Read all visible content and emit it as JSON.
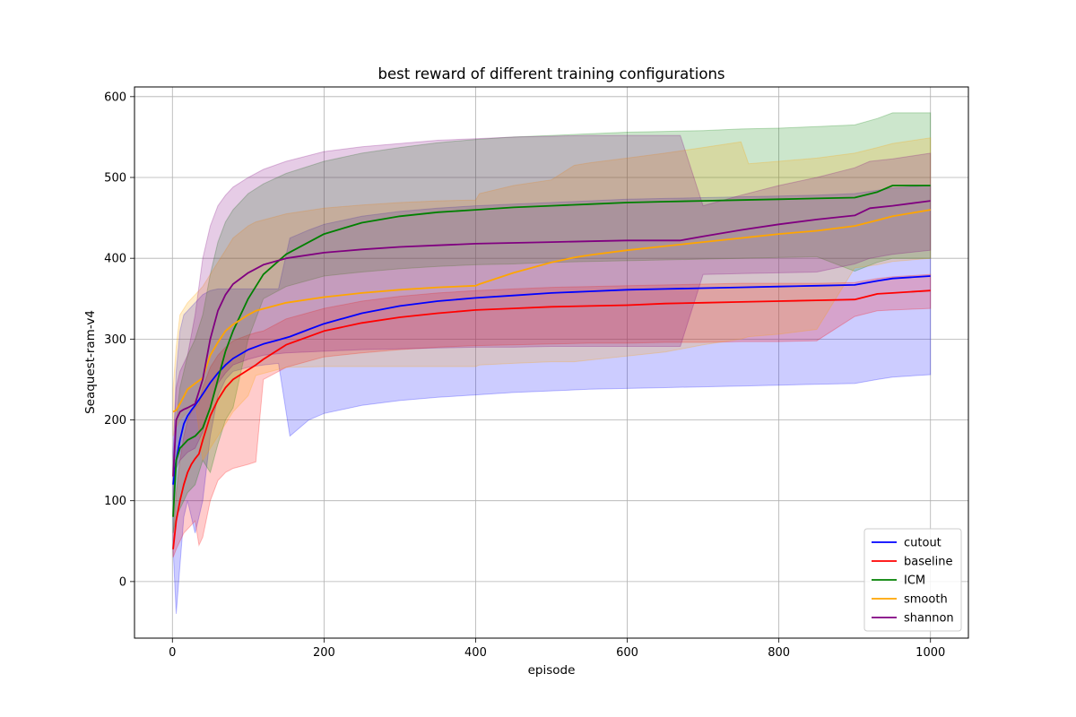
{
  "chart_data": {
    "type": "line",
    "title": "best reward of different training configurations",
    "xlabel": "episode",
    "ylabel": "Seaquest-ram-v4",
    "xlim": [
      -50,
      1050
    ],
    "ylim": [
      -70,
      612
    ],
    "xticks": [
      0,
      200,
      400,
      600,
      800,
      1000
    ],
    "yticks": [
      0,
      100,
      200,
      300,
      400,
      500,
      600
    ],
    "grid": true,
    "legend_position": "lower-right",
    "series": [
      {
        "name": "cutout",
        "color": "#0000ff",
        "x": [
          1,
          5,
          10,
          15,
          20,
          25,
          30,
          35,
          40,
          50,
          60,
          70,
          80,
          100,
          120,
          140,
          155,
          180,
          200,
          250,
          300,
          350,
          400,
          450,
          500,
          550,
          600,
          650,
          700,
          750,
          800,
          850,
          900,
          930,
          950,
          1000
        ],
        "mean": [
          120,
          150,
          175,
          195,
          205,
          212,
          218,
          225,
          232,
          246,
          258,
          268,
          276,
          287,
          294,
          299,
          303,
          312,
          319,
          332,
          341,
          347,
          351,
          354,
          357,
          359,
          361,
          362,
          363,
          364,
          365,
          366,
          367,
          372,
          375,
          378
        ],
        "upper": [
          160,
          260,
          310,
          330,
          335,
          340,
          345,
          350,
          355,
          360,
          362,
          362,
          362,
          362,
          362,
          362,
          425,
          435,
          442,
          452,
          458,
          462,
          465,
          467,
          469,
          471,
          473,
          474,
          475,
          476,
          477,
          478,
          480,
          484,
          487,
          490
        ],
        "lower": [
          40,
          -40,
          20,
          80,
          100,
          80,
          60,
          80,
          100,
          180,
          230,
          250,
          260,
          265,
          268,
          270,
          180,
          200,
          208,
          218,
          224,
          228,
          231,
          234,
          236,
          238,
          239,
          240,
          241,
          242,
          243,
          244,
          245,
          250,
          253,
          256
        ]
      },
      {
        "name": "baseline",
        "color": "#ff0000",
        "x": [
          1,
          5,
          10,
          15,
          20,
          25,
          30,
          35,
          40,
          50,
          60,
          70,
          80,
          100,
          110,
          120,
          150,
          200,
          250,
          300,
          350,
          400,
          450,
          500,
          550,
          600,
          650,
          700,
          750,
          800,
          850,
          900,
          930,
          950,
          1000
        ],
        "mean": [
          40,
          75,
          100,
          120,
          135,
          145,
          152,
          158,
          175,
          205,
          225,
          240,
          250,
          262,
          268,
          275,
          293,
          310,
          320,
          327,
          332,
          336,
          338,
          340,
          341,
          342,
          344,
          345,
          346,
          347,
          348,
          349,
          356,
          357,
          360
        ],
        "upper": [
          60,
          110,
          150,
          180,
          200,
          210,
          215,
          220,
          240,
          265,
          280,
          290,
          298,
          305,
          308,
          310,
          325,
          338,
          347,
          353,
          357,
          360,
          362,
          364,
          365,
          366,
          367,
          368,
          369,
          369,
          369,
          370,
          375,
          377,
          380
        ],
        "lower": [
          30,
          40,
          50,
          60,
          65,
          70,
          75,
          45,
          55,
          100,
          125,
          135,
          140,
          145,
          148,
          250,
          265,
          278,
          283,
          287,
          290,
          292,
          293,
          294,
          295,
          295,
          296,
          296,
          297,
          297,
          298,
          328,
          335,
          336,
          338
        ]
      },
      {
        "name": "ICM",
        "color": "#008000",
        "x": [
          1,
          5,
          10,
          15,
          20,
          30,
          40,
          50,
          60,
          70,
          80,
          100,
          120,
          150,
          200,
          250,
          300,
          350,
          400,
          450,
          500,
          550,
          600,
          650,
          700,
          750,
          800,
          850,
          900,
          930,
          950,
          1000
        ],
        "mean": [
          80,
          150,
          165,
          170,
          175,
          180,
          190,
          215,
          250,
          285,
          310,
          350,
          380,
          405,
          430,
          444,
          452,
          457,
          460,
          463,
          465,
          467,
          469,
          470,
          471,
          472,
          473,
          474,
          475,
          482,
          490,
          490
        ],
        "upper": [
          100,
          200,
          240,
          260,
          280,
          300,
          330,
          380,
          420,
          445,
          460,
          480,
          492,
          505,
          520,
          530,
          537,
          543,
          547,
          550,
          552,
          554,
          556,
          557,
          558,
          560,
          561,
          563,
          565,
          573,
          580,
          580
        ],
        "lower": [
          60,
          80,
          90,
          100,
          110,
          120,
          150,
          135,
          170,
          200,
          215,
          300,
          350,
          365,
          378,
          383,
          387,
          390,
          392,
          393,
          395,
          396,
          397,
          398,
          399,
          400,
          401,
          402,
          384,
          395,
          400,
          400
        ]
      },
      {
        "name": "smooth",
        "color": "#ffa500",
        "x": [
          1,
          5,
          10,
          20,
          30,
          40,
          50,
          60,
          70,
          80,
          100,
          110,
          150,
          200,
          250,
          300,
          350,
          400,
          405,
          450,
          500,
          530,
          550,
          600,
          650,
          700,
          750,
          760,
          800,
          850,
          900,
          930,
          950,
          1000
        ],
        "mean": [
          210,
          212,
          220,
          238,
          245,
          252,
          280,
          296,
          310,
          318,
          330,
          335,
          345,
          352,
          357,
          361,
          364,
          366,
          368,
          382,
          395,
          401,
          404,
          410,
          415,
          420,
          425,
          426,
          430,
          434,
          440,
          447,
          452,
          460
        ],
        "upper": [
          240,
          290,
          330,
          345,
          355,
          365,
          380,
          395,
          410,
          425,
          440,
          445,
          455,
          462,
          466,
          469,
          471,
          472,
          480,
          490,
          497,
          515,
          518,
          524,
          530,
          537,
          544,
          517,
          520,
          524,
          530,
          537,
          542,
          549
        ],
        "lower": [
          180,
          190,
          200,
          210,
          225,
          150,
          165,
          180,
          195,
          210,
          230,
          255,
          265,
          266,
          266,
          266,
          266,
          266,
          268,
          270,
          272,
          272,
          274,
          279,
          284,
          293,
          300,
          303,
          306,
          312,
          388,
          392,
          396,
          400
        ]
      },
      {
        "name": "shannon",
        "color": "#800080",
        "x": [
          1,
          5,
          10,
          15,
          20,
          30,
          40,
          50,
          60,
          70,
          80,
          100,
          120,
          150,
          200,
          250,
          300,
          350,
          400,
          450,
          500,
          550,
          600,
          650,
          670,
          700,
          750,
          800,
          850,
          900,
          920,
          950,
          1000
        ],
        "mean": [
          130,
          200,
          210,
          213,
          215,
          220,
          250,
          300,
          335,
          355,
          368,
          382,
          392,
          400,
          407,
          411,
          414,
          416,
          418,
          419,
          420,
          421,
          422,
          422,
          422,
          427,
          435,
          442,
          448,
          453,
          462,
          465,
          471
        ],
        "upper": [
          160,
          240,
          260,
          270,
          280,
          330,
          400,
          440,
          465,
          478,
          488,
          500,
          510,
          520,
          532,
          538,
          542,
          546,
          548,
          550,
          551,
          552,
          552,
          552,
          552,
          465,
          478,
          490,
          500,
          512,
          520,
          523,
          530
        ],
        "lower": [
          100,
          140,
          150,
          155,
          160,
          165,
          185,
          215,
          245,
          258,
          268,
          275,
          280,
          283,
          285,
          287,
          288,
          289,
          290,
          290,
          291,
          291,
          291,
          291,
          291,
          380,
          381,
          382,
          383,
          393,
          400,
          405,
          410
        ]
      }
    ]
  }
}
